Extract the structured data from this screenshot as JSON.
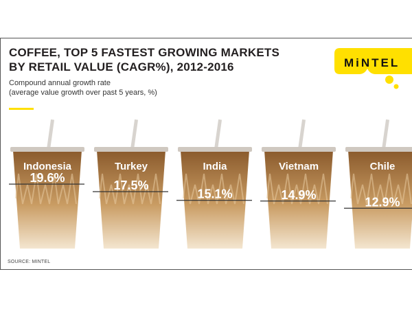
{
  "header": {
    "title_line1": "COFFEE, TOP 5 FASTEST GROWING MARKETS",
    "title_line2": "BY RETAIL VALUE (CAGR%), 2012-2016",
    "subtitle_line1": "Compound annual growth rate",
    "subtitle_line2": "(average value growth over past 5 years, %)"
  },
  "brand": {
    "logo_text": "MiNTEL",
    "accent_color": "#ffe000"
  },
  "footer": {
    "source": "SOURCE: MINTEL"
  },
  "colors": {
    "coffee_dark": "#8a5a2c",
    "coffee_light": "#f4e6d0",
    "lid": "#cfc8c0",
    "straw": "#d8d4cf"
  },
  "chart_data": {
    "type": "bar",
    "title": "COFFEE, TOP 5 FASTEST GROWING MARKETS BY RETAIL VALUE (CAGR%), 2012-2016",
    "subtitle": "Compound annual growth rate (average value growth over past 5 years, %)",
    "categories": [
      "Indonesia",
      "Turkey",
      "India",
      "Vietnam",
      "Chile"
    ],
    "values": [
      19.6,
      17.5,
      15.1,
      14.9,
      12.9
    ],
    "value_labels": [
      "19.6%",
      "17.5%",
      "15.1%",
      "14.9%",
      "12.9%"
    ],
    "unit": "%"
  }
}
